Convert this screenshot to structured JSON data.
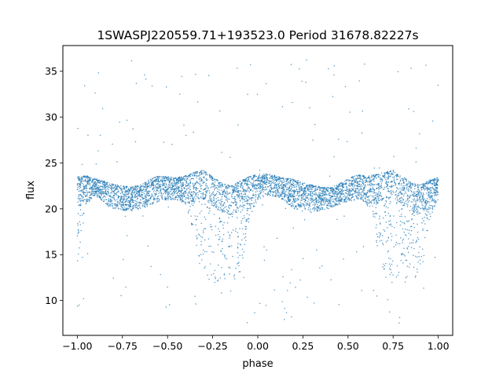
{
  "chart_data": {
    "type": "scatter",
    "title": "1SWASPJ220559.71+193523.0 Period 31678.82227s",
    "xlabel": "phase",
    "ylabel": "flux",
    "xlim": [
      -1.08,
      1.08
    ],
    "ylim": [
      6.2,
      37.8
    ],
    "xticks": [
      -1.0,
      -0.75,
      -0.5,
      -0.25,
      0.0,
      0.25,
      0.5,
      0.75,
      1.0
    ],
    "xtick_labels": [
      "−1.00",
      "−0.75",
      "−0.50",
      "−0.25",
      "0.00",
      "0.25",
      "0.50",
      "0.75",
      "1.00"
    ],
    "yticks": [
      10,
      15,
      20,
      25,
      30,
      35
    ],
    "ytick_labels": [
      "10",
      "15",
      "20",
      "25",
      "30",
      "35"
    ],
    "grid": false,
    "legend": "none",
    "point_color": "#1f77b4",
    "series": [
      {
        "phase": [
          -1.0,
          -0.95,
          -0.9,
          -0.85,
          -0.8,
          -0.75,
          -0.7,
          -0.65,
          -0.6,
          -0.55,
          -0.5,
          -0.45,
          -0.4,
          -0.35,
          -0.3,
          -0.25,
          -0.2,
          -0.15,
          -0.1,
          -0.05,
          0.0,
          0.05,
          0.1,
          0.15,
          0.2,
          0.25,
          0.3,
          0.35,
          0.4,
          0.45,
          0.5,
          0.55,
          0.6,
          0.65,
          0.7,
          0.75,
          0.8,
          0.85,
          0.9,
          0.95,
          1.0
        ],
        "upper_flux": [
          23.5,
          23.6,
          23.3,
          23.0,
          22.7,
          22.5,
          22.4,
          22.6,
          23.2,
          23.6,
          23.5,
          23.4,
          23.6,
          24.0,
          24.2,
          23.5,
          22.8,
          22.5,
          23.0,
          23.5,
          23.8,
          23.8,
          23.6,
          23.4,
          23.2,
          22.9,
          22.6,
          22.4,
          22.3,
          22.7,
          23.3,
          23.7,
          23.6,
          23.7,
          24.0,
          24.2,
          23.6,
          22.8,
          22.6,
          23.1,
          23.5
        ],
        "lower_flux": [
          14.0,
          20.5,
          21.5,
          20.5,
          20.0,
          19.8,
          19.8,
          20.0,
          20.3,
          20.8,
          21.0,
          21.0,
          20.5,
          17.0,
          12.0,
          11.8,
          11.8,
          12.0,
          12.0,
          18.5,
          21.0,
          21.5,
          21.3,
          20.8,
          20.0,
          19.7,
          19.6,
          19.8,
          20.0,
          20.4,
          20.8,
          21.0,
          20.5,
          17.0,
          12.0,
          11.8,
          11.8,
          12.0,
          12.0,
          18.5,
          21.0
        ]
      }
    ]
  }
}
